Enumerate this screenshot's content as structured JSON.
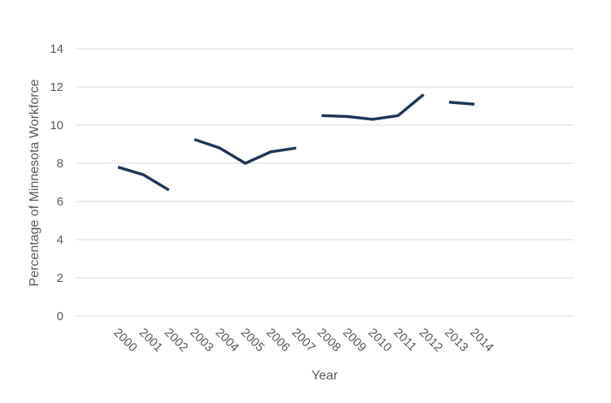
{
  "chart_data": {
    "type": "line",
    "title": "",
    "xlabel": "Year",
    "ylabel": "Percentage of Minnesota Workforce",
    "categories": [
      "2000",
      "2001",
      "2002",
      "2003",
      "2004",
      "2005",
      "2006",
      "2007",
      "2008",
      "2009",
      "2010",
      "2011",
      "2012",
      "2013",
      "2014"
    ],
    "segments": [
      {
        "x": [
          "2000",
          "2001",
          "2002"
        ],
        "values": [
          7.8,
          7.4,
          6.6
        ]
      },
      {
        "x": [
          "2003",
          "2004",
          "2005",
          "2006",
          "2007"
        ],
        "values": [
          9.25,
          8.8,
          8.0,
          8.6,
          8.8
        ]
      },
      {
        "x": [
          "2008",
          "2009",
          "2010",
          "2011",
          "2012"
        ],
        "values": [
          10.5,
          10.45,
          10.3,
          10.5,
          11.6
        ]
      },
      {
        "x": [
          "2013",
          "2014"
        ],
        "values": [
          11.2,
          11.1
        ]
      }
    ],
    "ylim": [
      0,
      14
    ],
    "yticks": [
      0,
      2,
      4,
      6,
      8,
      10,
      12,
      14
    ],
    "grid": true,
    "line_color": "#1f3657",
    "grid_color": "#d9d9d9"
  }
}
